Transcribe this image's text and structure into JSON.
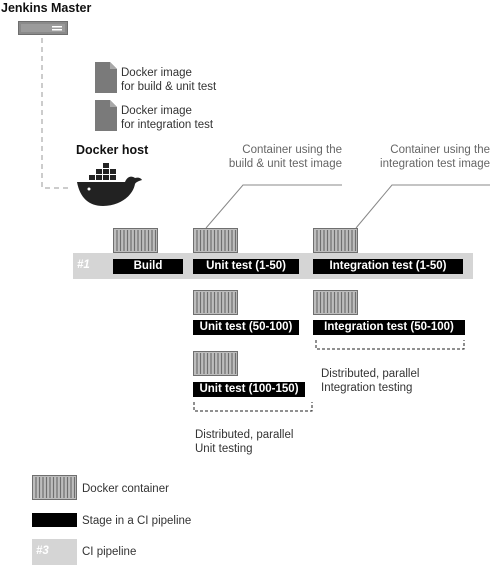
{
  "master": {
    "title": "Jenkins Master"
  },
  "images": [
    {
      "line1": "Docker image",
      "line2": "for build & unit test"
    },
    {
      "line1": "Docker image",
      "line2": "for integration test"
    }
  ],
  "host": {
    "title": "Docker host"
  },
  "callouts": {
    "unit": {
      "line1": "Container using the",
      "line2": "build & unit test image"
    },
    "integration": {
      "line1": "Container using the",
      "line2": "integration test image"
    }
  },
  "pipeline": {
    "tag": "#1"
  },
  "stages": {
    "build": "Build",
    "unit1": "Unit test (1-50)",
    "integ1": "Integration test (1-50)",
    "unit2": "Unit test (50-100)",
    "integ2": "Integration test (50-100)",
    "unit3": "Unit test (100-150)"
  },
  "notes": {
    "integration": {
      "line1": "Distributed, parallel",
      "line2": "Integration testing"
    },
    "unit": {
      "line1": "Distributed, parallel",
      "line2": "Unit testing"
    }
  },
  "legend": {
    "container": "Docker container",
    "stage": "Stage in a CI pipeline",
    "pipeline": "CI pipeline",
    "pipeline_tag": "#3"
  },
  "colors": {
    "pipeline": "#d5d5d5",
    "stage": "#000000",
    "container": "#777777",
    "dashed": "#bbbbbb"
  }
}
